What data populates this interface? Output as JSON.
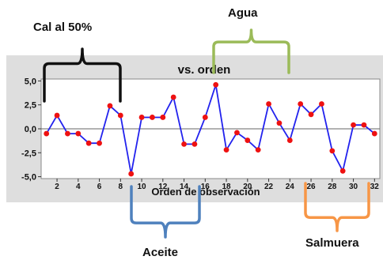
{
  "chart_data": {
    "type": "line",
    "title": "vs. orden",
    "xlabel": "Orden de observación",
    "ylabel": "",
    "xlim": [
      0.5,
      32.5
    ],
    "ylim": [
      -5.2,
      5.2
    ],
    "x_ticks": [
      2,
      4,
      6,
      8,
      10,
      12,
      14,
      16,
      18,
      20,
      22,
      24,
      26,
      28,
      30,
      32
    ],
    "y_ticks": [
      "5,0",
      "2,5",
      "0,0",
      "-2,5",
      "-5,0"
    ],
    "y_tick_values": [
      5,
      2.5,
      0,
      -2.5,
      -5
    ],
    "reference_line": 0,
    "grid": false,
    "series": [
      {
        "x": [
          1,
          2,
          3,
          4,
          5,
          6,
          7,
          8,
          9,
          10,
          11,
          12,
          13,
          14,
          15,
          16,
          17,
          18,
          19,
          20,
          21,
          22,
          23,
          24,
          25,
          26,
          27,
          28,
          29,
          30,
          31,
          32
        ],
        "values": [
          -0.5,
          1.4,
          -0.5,
          -0.5,
          -1.5,
          -1.5,
          2.4,
          1.4,
          -4.7,
          1.2,
          1.2,
          1.2,
          3.3,
          -1.6,
          -1.6,
          1.2,
          4.6,
          -2.2,
          -0.4,
          -1.2,
          -2.2,
          2.6,
          0.6,
          -1.2,
          2.6,
          1.5,
          2.6,
          -2.3,
          -4.4,
          0.4,
          0.4,
          -0.5
        ],
        "line_color": "#2222ee",
        "marker_color": "#ee1111"
      }
    ],
    "colors": {
      "plot_background": "#ffffff",
      "frame_background": "#dedede",
      "zero_line": "#666666"
    }
  },
  "annotations": [
    {
      "id": "cal",
      "label": "Cal al 50%",
      "bracket_color": "#111111"
    },
    {
      "id": "agua",
      "label": "Agua",
      "bracket_color": "#9bbb59"
    },
    {
      "id": "aceite",
      "label": "Aceite",
      "bracket_color": "#4f81bd"
    },
    {
      "id": "salmuera",
      "label": "Salmuera",
      "bracket_color": "#f79646"
    }
  ]
}
